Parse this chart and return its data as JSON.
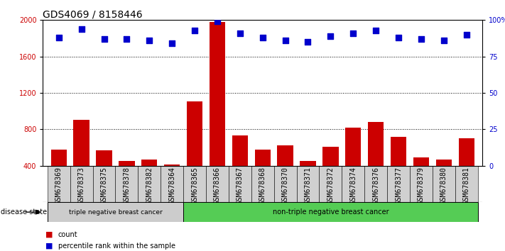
{
  "title": "GDS4069 / 8158446",
  "samples": [
    "GSM678369",
    "GSM678373",
    "GSM678375",
    "GSM678378",
    "GSM678382",
    "GSM678364",
    "GSM678365",
    "GSM678366",
    "GSM678367",
    "GSM678368",
    "GSM678370",
    "GSM678371",
    "GSM678372",
    "GSM678374",
    "GSM678376",
    "GSM678377",
    "GSM678379",
    "GSM678380",
    "GSM678381"
  ],
  "counts": [
    580,
    900,
    570,
    450,
    470,
    410,
    1110,
    1980,
    730,
    580,
    620,
    450,
    610,
    820,
    880,
    720,
    490,
    470,
    700
  ],
  "percentiles": [
    88,
    94,
    87,
    87,
    86,
    84,
    93,
    99,
    91,
    88,
    86,
    85,
    89,
    91,
    93,
    88,
    87,
    86,
    90
  ],
  "bar_color": "#cc0000",
  "dot_color": "#0000cc",
  "ylim_left": [
    400,
    2000
  ],
  "ylim_right": [
    0,
    100
  ],
  "yticks_left": [
    400,
    800,
    1200,
    1600,
    2000
  ],
  "yticks_right": [
    0,
    25,
    50,
    75,
    100
  ],
  "ytick_labels_right": [
    "0",
    "25",
    "50",
    "75",
    "100%"
  ],
  "group1_label": "triple negative breast cancer",
  "group2_label": "non-triple negative breast cancer",
  "group1_count": 6,
  "group2_count": 13,
  "disease_state_label": "disease state",
  "legend_count_label": "count",
  "legend_percentile_label": "percentile rank within the sample",
  "bg_color": "#ffffff",
  "group1_color": "#cccccc",
  "group2_color": "#55cc55",
  "title_fontsize": 10,
  "tick_fontsize": 7,
  "label_fontsize": 7.5
}
